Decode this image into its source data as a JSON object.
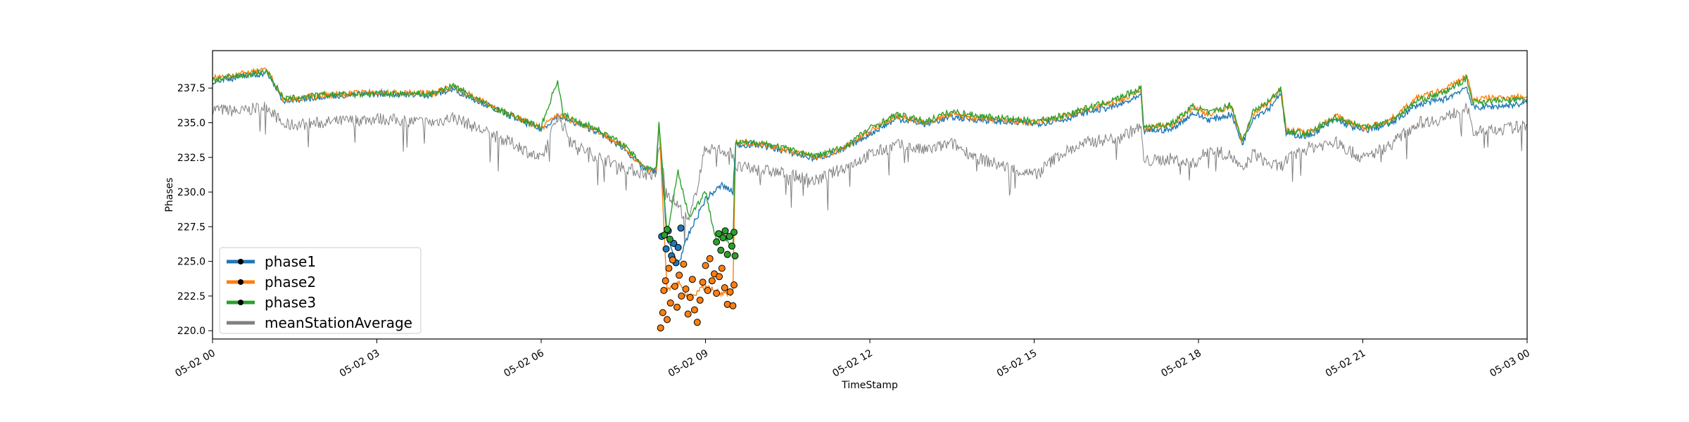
{
  "chart_data": {
    "type": "line",
    "xlabel": "TimeStamp",
    "ylabel": "Phases",
    "xlim": [
      "2024-05-02 00:00",
      "2024-05-03 00:00"
    ],
    "ylim": [
      219.4,
      240.2
    ],
    "xticks": [
      {
        "t": 0,
        "label": "05-02 00"
      },
      {
        "t": 3,
        "label": "05-02 03"
      },
      {
        "t": 6,
        "label": "05-02 06"
      },
      {
        "t": 9,
        "label": "05-02 09"
      },
      {
        "t": 12,
        "label": "05-02 12"
      },
      {
        "t": 15,
        "label": "05-02 15"
      },
      {
        "t": 18,
        "label": "05-02 18"
      },
      {
        "t": 21,
        "label": "05-02 21"
      },
      {
        "t": 24,
        "label": "05-03 00"
      }
    ],
    "yticks": [
      {
        "v": 220.0,
        "label": "220.0"
      },
      {
        "v": 222.5,
        "label": "222.5"
      },
      {
        "v": 225.0,
        "label": "225.0"
      },
      {
        "v": 227.5,
        "label": "227.5"
      },
      {
        "v": 230.0,
        "label": "230.0"
      },
      {
        "v": 232.5,
        "label": "232.5"
      },
      {
        "v": 235.0,
        "label": "235.0"
      },
      {
        "v": 237.5,
        "label": "237.5"
      }
    ],
    "grid": false,
    "legend_position": "lower-left",
    "series": [
      {
        "name": "phase1",
        "color": "#1f77b4",
        "points": [
          [
            0,
            238.0
          ],
          [
            0.5,
            238.3
          ],
          [
            1.0,
            238.6
          ],
          [
            1.3,
            236.5
          ],
          [
            2,
            236.9
          ],
          [
            3,
            237.1
          ],
          [
            4,
            237.0
          ],
          [
            4.4,
            237.4
          ],
          [
            5,
            236.3
          ],
          [
            5.6,
            235.2
          ],
          [
            6,
            234.5
          ],
          [
            6.3,
            235.5
          ],
          [
            6.6,
            235.0
          ],
          [
            7,
            234.4
          ],
          [
            7.5,
            233.2
          ],
          [
            7.9,
            231.6
          ],
          [
            8.1,
            231.5
          ],
          [
            8.15,
            234.8
          ],
          [
            8.3,
            226.5
          ],
          [
            8.5,
            224.8
          ],
          [
            8.7,
            227.0
          ],
          [
            9.0,
            229.5
          ],
          [
            9.3,
            230.5
          ],
          [
            9.5,
            230.0
          ],
          [
            9.55,
            233.4
          ],
          [
            10,
            233.4
          ],
          [
            10.5,
            232.9
          ],
          [
            11,
            232.4
          ],
          [
            11.5,
            233.0
          ],
          [
            12,
            234.2
          ],
          [
            12.5,
            235.3
          ],
          [
            13,
            234.9
          ],
          [
            13.5,
            235.4
          ],
          [
            14,
            235.2
          ],
          [
            15,
            234.9
          ],
          [
            15.5,
            235.2
          ],
          [
            16,
            235.8
          ],
          [
            16.5,
            236.2
          ],
          [
            16.95,
            236.9
          ],
          [
            17.0,
            234.4
          ],
          [
            17.5,
            234.5
          ],
          [
            17.9,
            235.7
          ],
          [
            18.2,
            235.2
          ],
          [
            18.6,
            235.6
          ],
          [
            18.8,
            233.5
          ],
          [
            19.0,
            235.4
          ],
          [
            19.3,
            236.1
          ],
          [
            19.5,
            237.2
          ],
          [
            19.6,
            234.2
          ],
          [
            20,
            234.0
          ],
          [
            20.5,
            235.2
          ],
          [
            21,
            234.4
          ],
          [
            21.5,
            234.9
          ],
          [
            22,
            236.3
          ],
          [
            22.5,
            236.7
          ],
          [
            22.9,
            237.6
          ],
          [
            23.0,
            236.1
          ],
          [
            23.5,
            236.2
          ],
          [
            24,
            236.4
          ]
        ]
      },
      {
        "name": "phase2",
        "color": "#ff7f0e",
        "points": [
          [
            0,
            238.2
          ],
          [
            0.5,
            238.5
          ],
          [
            1.0,
            238.8
          ],
          [
            1.3,
            236.6
          ],
          [
            2,
            237.0
          ],
          [
            3,
            237.2
          ],
          [
            4,
            237.1
          ],
          [
            4.4,
            237.6
          ],
          [
            5,
            236.4
          ],
          [
            5.6,
            235.3
          ],
          [
            6,
            234.6
          ],
          [
            6.3,
            235.6
          ],
          [
            6.6,
            235.1
          ],
          [
            7,
            234.5
          ],
          [
            7.5,
            233.3
          ],
          [
            7.9,
            231.7
          ],
          [
            8.1,
            231.6
          ],
          [
            8.15,
            235.0
          ],
          [
            8.3,
            222.8
          ],
          [
            8.5,
            223.5
          ],
          [
            8.7,
            222.4
          ],
          [
            9.0,
            223.2
          ],
          [
            9.3,
            222.6
          ],
          [
            9.5,
            222.8
          ],
          [
            9.55,
            233.6
          ],
          [
            10,
            233.5
          ],
          [
            10.5,
            233.0
          ],
          [
            11,
            232.5
          ],
          [
            11.5,
            233.1
          ],
          [
            12,
            234.4
          ],
          [
            12.5,
            235.5
          ],
          [
            13,
            235.0
          ],
          [
            13.5,
            235.6
          ],
          [
            14,
            235.3
          ],
          [
            15,
            235.0
          ],
          [
            15.5,
            235.4
          ],
          [
            16,
            236.0
          ],
          [
            16.5,
            236.5
          ],
          [
            16.95,
            237.3
          ],
          [
            17.0,
            234.6
          ],
          [
            17.5,
            234.8
          ],
          [
            17.9,
            236.1
          ],
          [
            18.2,
            235.6
          ],
          [
            18.6,
            236.2
          ],
          [
            18.8,
            233.6
          ],
          [
            19.0,
            235.7
          ],
          [
            19.3,
            236.5
          ],
          [
            19.5,
            237.6
          ],
          [
            19.6,
            234.5
          ],
          [
            20,
            234.3
          ],
          [
            20.5,
            235.5
          ],
          [
            21,
            234.6
          ],
          [
            21.5,
            235.2
          ],
          [
            22,
            236.8
          ],
          [
            22.5,
            237.4
          ],
          [
            22.9,
            238.4
          ],
          [
            23.0,
            236.7
          ],
          [
            23.5,
            236.8
          ],
          [
            24,
            236.9
          ]
        ]
      },
      {
        "name": "phase3",
        "color": "#2ca02c",
        "points": [
          [
            0,
            238.1
          ],
          [
            0.5,
            238.4
          ],
          [
            1.0,
            238.7
          ],
          [
            1.3,
            236.7
          ],
          [
            2,
            237.0
          ],
          [
            3,
            237.1
          ],
          [
            4,
            237.1
          ],
          [
            4.4,
            237.7
          ],
          [
            5,
            236.3
          ],
          [
            5.6,
            235.3
          ],
          [
            6,
            234.7
          ],
          [
            6.3,
            238.1
          ],
          [
            6.4,
            235.6
          ],
          [
            6.6,
            235.2
          ],
          [
            7,
            234.6
          ],
          [
            7.5,
            233.4
          ],
          [
            7.9,
            231.8
          ],
          [
            8.1,
            231.7
          ],
          [
            8.15,
            235.2
          ],
          [
            8.3,
            227.0
          ],
          [
            8.5,
            231.5
          ],
          [
            8.7,
            228.2
          ],
          [
            9.0,
            230.0
          ],
          [
            9.2,
            226.5
          ],
          [
            9.3,
            227.0
          ],
          [
            9.5,
            226.0
          ],
          [
            9.55,
            233.5
          ],
          [
            10,
            233.6
          ],
          [
            10.5,
            233.1
          ],
          [
            11,
            232.6
          ],
          [
            11.5,
            233.2
          ],
          [
            12,
            234.6
          ],
          [
            12.5,
            235.6
          ],
          [
            13,
            235.1
          ],
          [
            13.5,
            235.8
          ],
          [
            14,
            235.5
          ],
          [
            15,
            235.1
          ],
          [
            15.5,
            235.5
          ],
          [
            16,
            236.1
          ],
          [
            16.5,
            236.7
          ],
          [
            16.95,
            237.5
          ],
          [
            17.0,
            234.7
          ],
          [
            17.5,
            234.9
          ],
          [
            17.9,
            236.2
          ],
          [
            18.2,
            235.7
          ],
          [
            18.6,
            236.3
          ],
          [
            18.8,
            233.7
          ],
          [
            19.0,
            235.8
          ],
          [
            19.3,
            236.6
          ],
          [
            19.5,
            237.5
          ],
          [
            19.6,
            234.4
          ],
          [
            20,
            234.2
          ],
          [
            20.5,
            235.4
          ],
          [
            21,
            234.7
          ],
          [
            21.5,
            235.1
          ],
          [
            22,
            236.6
          ],
          [
            22.5,
            237.2
          ],
          [
            22.9,
            238.2
          ],
          [
            23.0,
            236.5
          ],
          [
            23.5,
            236.6
          ],
          [
            24,
            236.7
          ]
        ]
      },
      {
        "name": "meanStationAverage",
        "color": "#808080",
        "points": [
          [
            0,
            236.0
          ],
          [
            0.5,
            235.8
          ],
          [
            1.0,
            236.2
          ],
          [
            1.3,
            234.8
          ],
          [
            2,
            235.0
          ],
          [
            3,
            235.3
          ],
          [
            4,
            235.0
          ],
          [
            4.4,
            235.4
          ],
          [
            5,
            234.3
          ],
          [
            5.6,
            233.3
          ],
          [
            6,
            232.3
          ],
          [
            6.3,
            235.5
          ],
          [
            6.6,
            233.4
          ],
          [
            7,
            232.6
          ],
          [
            7.5,
            231.8
          ],
          [
            7.9,
            231.3
          ],
          [
            8.1,
            231.2
          ],
          [
            8.15,
            233.4
          ],
          [
            8.3,
            230.0
          ],
          [
            8.5,
            229.0
          ],
          [
            8.7,
            227.8
          ],
          [
            9.0,
            233.2
          ],
          [
            9.3,
            233.0
          ],
          [
            9.5,
            232.8
          ],
          [
            9.55,
            231.8
          ],
          [
            10,
            231.6
          ],
          [
            10.5,
            231.3
          ],
          [
            11,
            230.8
          ],
          [
            11.5,
            231.7
          ],
          [
            12,
            232.7
          ],
          [
            12.5,
            233.4
          ],
          [
            13,
            233.0
          ],
          [
            13.5,
            233.5
          ],
          [
            14,
            232.4
          ],
          [
            15,
            231.2
          ],
          [
            15.5,
            232.8
          ],
          [
            16,
            233.6
          ],
          [
            16.5,
            233.9
          ],
          [
            16.95,
            234.7
          ],
          [
            17.0,
            232.2
          ],
          [
            17.5,
            232.4
          ],
          [
            17.9,
            232.0
          ],
          [
            18.2,
            233.1
          ],
          [
            18.6,
            232.6
          ],
          [
            18.8,
            231.5
          ],
          [
            19.0,
            232.8
          ],
          [
            19.3,
            232.0
          ],
          [
            19.5,
            231.8
          ],
          [
            19.6,
            232.3
          ],
          [
            20,
            233.2
          ],
          [
            20.5,
            233.6
          ],
          [
            21,
            232.4
          ],
          [
            21.5,
            233.4
          ],
          [
            22,
            235.0
          ],
          [
            22.5,
            235.3
          ],
          [
            22.9,
            236.3
          ],
          [
            23.0,
            234.3
          ],
          [
            23.5,
            234.5
          ],
          [
            24,
            234.8
          ]
        ]
      }
    ],
    "scatter": [
      {
        "name": "phase1",
        "color": "#1f77b4",
        "points": [
          [
            8.2,
            226.8
          ],
          [
            8.28,
            225.9
          ],
          [
            8.32,
            227.2
          ],
          [
            8.38,
            225.4
          ],
          [
            8.42,
            226.3
          ],
          [
            8.46,
            224.9
          ],
          [
            8.5,
            226.0
          ],
          [
            8.55,
            227.4
          ]
        ]
      },
      {
        "name": "phase2",
        "color": "#ff7f0e",
        "points": [
          [
            8.18,
            220.2
          ],
          [
            8.22,
            221.3
          ],
          [
            8.24,
            222.9
          ],
          [
            8.27,
            223.6
          ],
          [
            8.3,
            220.8
          ],
          [
            8.33,
            224.5
          ],
          [
            8.36,
            222.0
          ],
          [
            8.4,
            225.1
          ],
          [
            8.44,
            223.2
          ],
          [
            8.48,
            221.7
          ],
          [
            8.52,
            224.0
          ],
          [
            8.56,
            222.5
          ],
          [
            8.6,
            224.8
          ],
          [
            8.64,
            223.0
          ],
          [
            8.68,
            221.2
          ],
          [
            8.72,
            222.4
          ],
          [
            8.76,
            223.7
          ],
          [
            8.8,
            221.5
          ],
          [
            8.85,
            220.6
          ],
          [
            8.9,
            222.2
          ],
          [
            8.95,
            223.5
          ],
          [
            9.0,
            224.7
          ],
          [
            9.04,
            222.9
          ],
          [
            9.08,
            225.2
          ],
          [
            9.12,
            223.6
          ],
          [
            9.16,
            224.1
          ],
          [
            9.2,
            222.7
          ],
          [
            9.25,
            223.9
          ],
          [
            9.3,
            224.5
          ],
          [
            9.35,
            223.1
          ],
          [
            9.4,
            221.9
          ],
          [
            9.45,
            222.8
          ],
          [
            9.5,
            221.8
          ],
          [
            9.52,
            223.3
          ]
        ]
      },
      {
        "name": "phase3",
        "color": "#2ca02c",
        "points": [
          [
            8.25,
            226.9
          ],
          [
            8.3,
            227.3
          ],
          [
            8.35,
            226.6
          ],
          [
            9.2,
            226.4
          ],
          [
            9.24,
            227.0
          ],
          [
            9.28,
            225.8
          ],
          [
            9.32,
            226.7
          ],
          [
            9.36,
            227.2
          ],
          [
            9.4,
            225.5
          ],
          [
            9.44,
            226.8
          ],
          [
            9.48,
            226.1
          ],
          [
            9.52,
            227.1
          ],
          [
            9.54,
            225.4
          ]
        ]
      }
    ]
  }
}
